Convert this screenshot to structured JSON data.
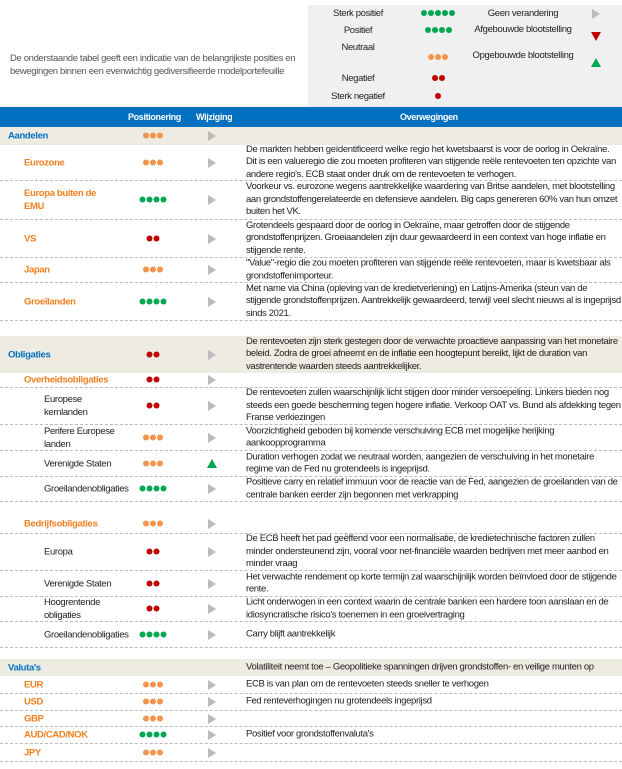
{
  "intro": "De onderstaande tabel geeft een indicatie van de belangrijkste posities en bewegingen binnen een evenwichtig gediversifieerde modelportefeuille",
  "colors": {
    "green": "#00a651",
    "orange": "#f7944a",
    "red": "#c00000",
    "blue": "#0070c0"
  },
  "legend": {
    "levels": [
      {
        "label": "Sterk positief",
        "count": 5,
        "color": "green"
      },
      {
        "label": "Positief",
        "count": 4,
        "color": "green"
      },
      {
        "label": "Neutraal",
        "count": 3,
        "color": "orange"
      },
      {
        "label": "Negatief",
        "count": 2,
        "color": "red"
      },
      {
        "label": "Sterk negatief",
        "count": 1,
        "color": "red"
      }
    ],
    "changes": [
      {
        "label": "Geen verandering",
        "icon": "arrow-right-icon"
      },
      {
        "label": "Afgebouwde blootstelling",
        "icon": "triangle-down-icon"
      },
      {
        "label": "Opgebouwde blootstelling",
        "icon": "triangle-up-icon"
      }
    ]
  },
  "header": {
    "positioning": "Positionering",
    "change": "Wijziging",
    "considerations": "Overwegingen"
  },
  "rows": [
    {
      "label": "Aandelen",
      "level": 0,
      "pos": 3,
      "change": "none",
      "text": ""
    },
    {
      "label": "Eurozone",
      "level": 1,
      "pos": 3,
      "change": "none",
      "text": "De markten hebben geïdentificeerd welke regio het kwetsbaarst is voor de oorlog in Oekraïne. Dit is een valueregio die zou moeten profiteren van stijgende reële rentevoeten ten opzichte van andere regio's. ECB staat onder druk om de rentevoeten te verhogen."
    },
    {
      "label": "Europa buiten de EMU",
      "level": 1,
      "pos": 4,
      "change": "none",
      "text": "Voorkeur vs. eurozone wegens aantrekkelijke waardering van Britse aandelen, met blootstelling aan grondstoffengerelateerde en defensieve aandelen. Big caps genereren 60% van hun omzet buiten het VK."
    },
    {
      "label": "VS",
      "level": 1,
      "pos": 2,
      "change": "none",
      "text": "Grotendeels gespaard door de oorlog in Oekraïne, maar getroffen door de stijgende grondstoffenprijzen. Groeiaandelen zijn duur gewaardeerd in een context van hoge inflatie en stijgende rente."
    },
    {
      "label": "Japan",
      "level": 1,
      "pos": 3,
      "change": "none",
      "text": "\"Value\"-regio die zou moeten profiteren van stijgende reële rentevoeten, maar is kwetsbaar als grondstoffenimporteur."
    },
    {
      "label": "Groeilanden",
      "level": 1,
      "pos": 4,
      "change": "none",
      "text": "Met name via China (opleving van de kredietverlening) en Latijns-Amerika (steun van de stijgende grondstoffenprijzen. Aantrekkelijk gewaardeerd, terwijl veel slecht nieuws al is ingeprijsd sinds 2021."
    },
    {
      "gap": true
    },
    {
      "label": "Obligaties",
      "level": 0,
      "pos": 2,
      "change": "none",
      "text": "De rentevoeten zijn sterk gestegen door de verwachte proactieve aanpassing van het monetaire beleid. Zodra de groei afneemt en de inflatie een hoogtepunt bereikt, lijkt de duration van vastrentende waarden steeds aantrekkelijker."
    },
    {
      "label": "Overheidsobligaties",
      "level": 1,
      "pos": 2,
      "change": "none",
      "text": ""
    },
    {
      "label": "Europese kernlanden",
      "level": 2,
      "pos": 2,
      "change": "none",
      "text": "De rentevoeten zullen waarschijnlijk licht stijgen door minder versoepeling. Linkers bieden nog steeds een goede bescherming tegen hogere inflatie. Verkoop OAT vs. Bund als afdekking tegen Franse verkiezingen"
    },
    {
      "label": "Perifere Europese landen",
      "level": 2,
      "pos": 3,
      "change": "none",
      "text": "Voorzichtigheid geboden bij komende verschuiving ECB met mogelijke herijking aankoopprogramma"
    },
    {
      "label": "Verenigde Staten",
      "level": 2,
      "pos": 3,
      "change": "up",
      "text": "Duration verhogen zodat we neutraal worden, aangezien de verschuiving in het monetaire regime van de Fed nu grotendeels is ingeprijsd."
    },
    {
      "label": "Groeilandenobligaties",
      "level": 2,
      "pos": 4,
      "change": "none",
      "text": "Positieve carry en relatief immuun voor de reactie van de Fed, aangezien de groeilanden van de centrale banken eerder zijn begonnen met verkrapping"
    },
    {
      "gap": true
    },
    {
      "label": "Bedrijfsobligaties",
      "level": 1,
      "pos": 3,
      "change": "none",
      "text": ""
    },
    {
      "label": "Europa",
      "level": 2,
      "pos": 2,
      "change": "none",
      "text": "De ECB heeft het pad geëffend voor een normalisatie, de kredietechnische factoren zullen minder ondersteunend zijn, vooral voor net-financiële waarden bedrijven met meer aanbod en minder vraag"
    },
    {
      "label": "Verenigde Staten",
      "level": 2,
      "pos": 2,
      "change": "none",
      "text": "Het verwachte rendement op korte termijn zal waarschijnlijk worden beïnvloed door de stijgende rente."
    },
    {
      "label": "Hoogrentende obligaties",
      "level": 2,
      "pos": 2,
      "change": "none",
      "text": "Licht onderwogen in een context waarin de centrale banken een hardere toon aanslaan en de idiosyncratische risico's toenemen in een groeivertraging"
    },
    {
      "label": "Groeilandenobligaties",
      "level": 2,
      "pos": 4,
      "change": "none",
      "text": "Carry blijft aantrekkelijk"
    },
    {
      "gap": true
    },
    {
      "label": "Valuta's",
      "level": 0,
      "pos": 0,
      "change": "",
      "text": "Volatiliteit neemt toe – Geopolitieke spanningen drijven grondstoffen- en veilige munten op"
    },
    {
      "label": "EUR",
      "level": 1,
      "pos": 3,
      "change": "none",
      "text": "ECB is van plan om de rentevoeten steeds sneller te verhogen"
    },
    {
      "label": "USD",
      "level": 1,
      "pos": 3,
      "change": "none",
      "text": "Fed renteverhogingen nu grotendeels ingeprijsd"
    },
    {
      "label": "GBP",
      "level": 1,
      "pos": 3,
      "change": "none",
      "text": ""
    },
    {
      "label": "AUD/CAD/NOK",
      "level": 1,
      "pos": 4,
      "change": "none",
      "text": "Positief voor grondstoffenvaluta's"
    },
    {
      "label": "JPY",
      "level": 1,
      "pos": 3,
      "change": "none",
      "text": ""
    }
  ]
}
